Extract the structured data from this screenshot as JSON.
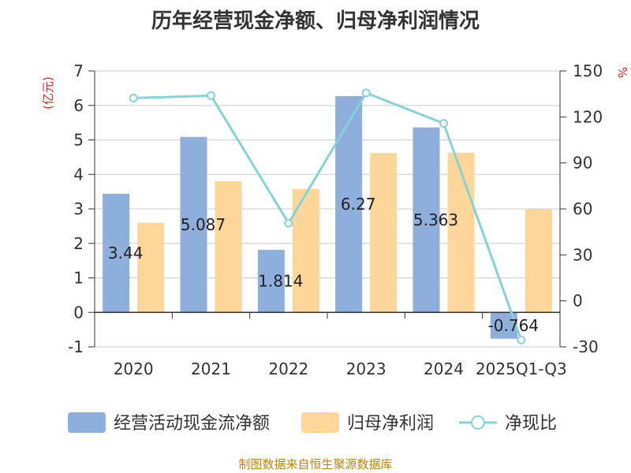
{
  "chart_data": {
    "type": "bar",
    "title": "历年经营现金净额、归母净利润情况",
    "categories": [
      "2020",
      "2021",
      "2022",
      "2023",
      "2024",
      "2025Q1-Q3"
    ],
    "series": [
      {
        "name": "经营活动现金流净额",
        "type": "bar",
        "axis": "left",
        "color": "#8eaedb",
        "values": [
          3.44,
          5.087,
          1.814,
          6.27,
          5.363,
          -0.764
        ],
        "data_labels": [
          "3.44",
          "5.087",
          "1.814",
          "6.27",
          "5.363",
          "-0.764"
        ]
      },
      {
        "name": "归母净利润",
        "type": "bar",
        "axis": "left",
        "color": "#fed69a",
        "values": [
          2.6,
          3.8,
          3.58,
          4.62,
          4.63,
          3.0
        ]
      },
      {
        "name": "净现比",
        "type": "line",
        "axis": "right",
        "color": "#86d3d7",
        "values": [
          132.3,
          133.9,
          50.7,
          135.7,
          115.8,
          -25.5
        ]
      }
    ],
    "yleft": {
      "label": "(亿元)",
      "ylim": [
        -1,
        7
      ],
      "ticks": [
        "-1",
        "0",
        "1",
        "2",
        "3",
        "4",
        "5",
        "6",
        "7"
      ]
    },
    "yright": {
      "label": "%",
      "ylim": [
        -30,
        150
      ],
      "ticks": [
        "-30",
        "0",
        "30",
        "60",
        "90",
        "120",
        "150"
      ]
    },
    "legend_position": "bottom",
    "grid": true
  },
  "source_text": "制图数据来自恒生聚源数据库"
}
